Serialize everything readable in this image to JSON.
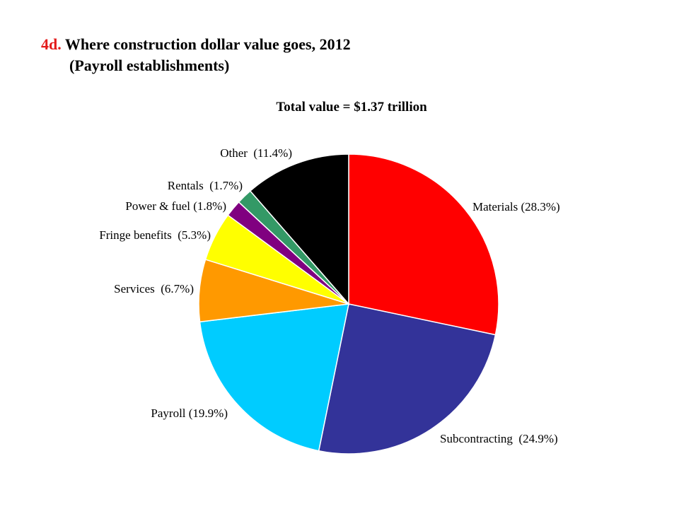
{
  "header": {
    "number": "4d.",
    "title": "Where construction dollar value goes, 2012",
    "subtitle": "(Payroll establishments)"
  },
  "chart_data": {
    "type": "pie",
    "title": "Where construction dollar value goes, 2012 (Payroll establishments)",
    "subtitle": "Total value = $1.37 trillion",
    "start": "12 o'clock, clockwise",
    "slices": [
      {
        "name": "Materials",
        "value": 28.3,
        "label": "Materials (28.3%)",
        "color": "#ff0000"
      },
      {
        "name": "Subcontracting",
        "value": 24.9,
        "label": "Subcontracting  (24.9%)",
        "color": "#333399"
      },
      {
        "name": "Payroll",
        "value": 19.9,
        "label": "Payroll (19.9%)",
        "color": "#00ccff"
      },
      {
        "name": "Services",
        "value": 6.7,
        "label": "Services  (6.7%)",
        "color": "#ff9900"
      },
      {
        "name": "Fringe benefits",
        "value": 5.3,
        "label": "Fringe benefits  (5.3%)",
        "color": "#ffff00"
      },
      {
        "name": "Power & fuel",
        "value": 1.8,
        "label": "Power & fuel (1.8%)",
        "color": "#800080"
      },
      {
        "name": "Rentals",
        "value": 1.7,
        "label": "Rentals  (1.7%)",
        "color": "#339966"
      },
      {
        "name": "Other",
        "value": 11.4,
        "label": "Other  (11.4%)",
        "color": "#000000"
      }
    ]
  }
}
